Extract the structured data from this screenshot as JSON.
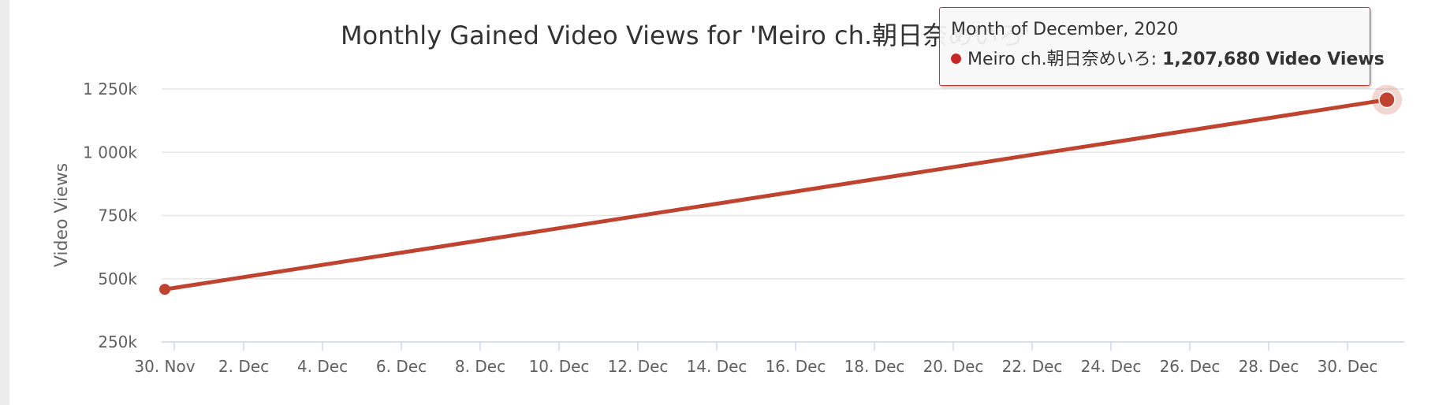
{
  "chart_data": {
    "type": "line",
    "title": "Monthly Gained Video Views for 'Meiro ch.朝日奈めいろ'",
    "ylabel": "Video Views",
    "xlabel": "",
    "x_ticks": [
      "30. Nov",
      "2. Dec",
      "4. Dec",
      "6. Dec",
      "8. Dec",
      "10. Dec",
      "12. Dec",
      "14. Dec",
      "16. Dec",
      "18. Dec",
      "20. Dec",
      "22. Dec",
      "24. Dec",
      "26. Dec",
      "28. Dec",
      "30. Dec"
    ],
    "y_ticks": [
      "250k",
      "500k",
      "750k",
      "1 000k",
      "1 250k"
    ],
    "y_tick_values": [
      250000,
      500000,
      750000,
      1000000,
      1250000
    ],
    "ylim": [
      250000,
      1250000
    ],
    "grid": true,
    "series": [
      {
        "name": "Meiro ch.朝日奈めいろ",
        "color": "#c0432f",
        "points": [
          {
            "x": "2020-11-30",
            "y": 458000
          },
          {
            "x": "2020-12-31",
            "y": 1207680
          }
        ]
      }
    ]
  },
  "tooltip": {
    "header": "Month of December, 2020",
    "series_label": "Meiro ch.朝日奈めいろ:",
    "value": "1,207,680 Video Views"
  }
}
